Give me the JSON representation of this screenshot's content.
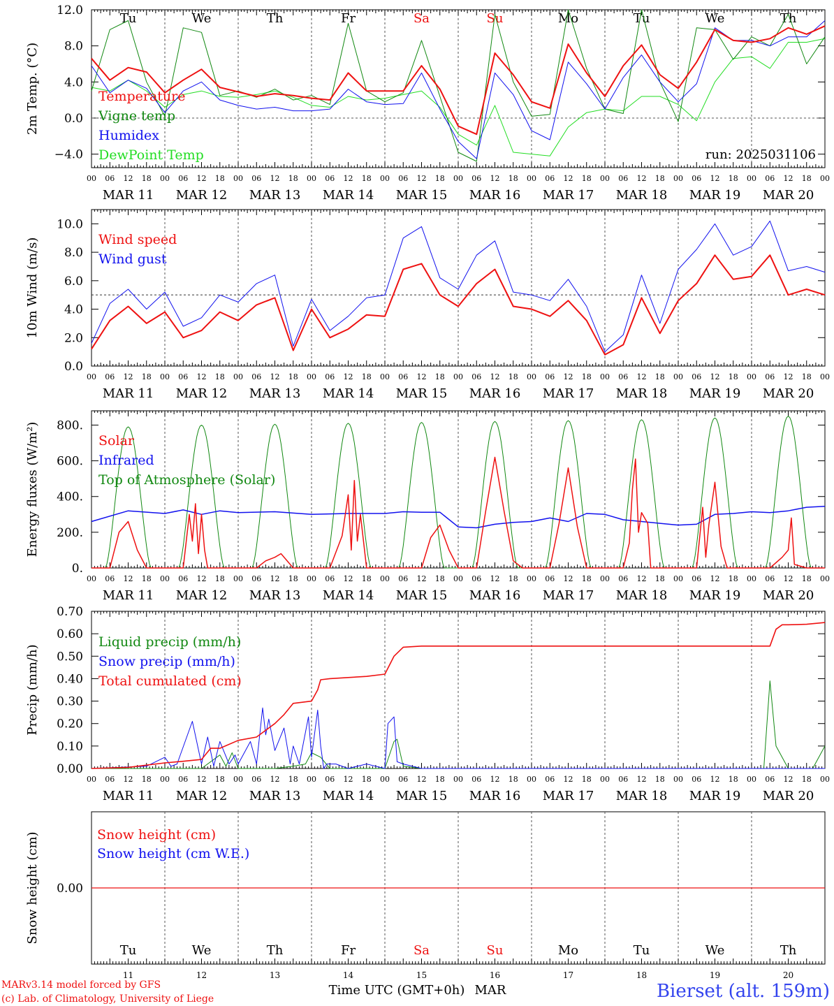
{
  "colors": {
    "red": "#ee1111",
    "green": "#118811",
    "blue": "#1111ee",
    "lightgreen": "#22dd22",
    "axis": "#000000",
    "site": "#3344ee"
  },
  "day_names": [
    "Tu",
    "We",
    "Th",
    "Fr",
    "Sa",
    "Su",
    "Mo",
    "Tu",
    "We",
    "Th"
  ],
  "weekend_days": [
    4,
    5
  ],
  "date_labels": [
    "MAR 11",
    "MAR 12",
    "MAR 13",
    "MAR 14",
    "MAR 15",
    "MAR 16",
    "MAR 17",
    "MAR 18",
    "MAR 19",
    "MAR 20"
  ],
  "hour_labels": [
    "00",
    "06",
    "12",
    "18"
  ],
  "hour_end_label": "00",
  "day_numbers": [
    "11",
    "12",
    "13",
    "14",
    "15",
    "16",
    "17",
    "18",
    "19",
    "20"
  ],
  "footer": {
    "model": "MARv3.14 model forced by GFS",
    "copyright": "(c) Lab. of Climatology, University of Liege",
    "time_axis": "Time UTC (GMT+0h)",
    "month": "MAR",
    "site": "Bierset (alt. 159m)"
  },
  "chart_data": [
    {
      "type": "line",
      "ylabel": "2m Temp. (°C)",
      "ylim": [
        -5.5,
        12.0
      ],
      "yticks": [
        -4.0,
        0.0,
        4.0,
        8.0,
        12.0
      ],
      "ytick_labels": [
        "−4.0",
        "0.0",
        "4.0",
        "8.0",
        "12.0"
      ],
      "ref_line": 0.0,
      "annotation": "run: 2025031106",
      "legend": [
        "Temperature",
        "Vigne temp",
        "Humidex",
        "DewPoint Temp"
      ],
      "x_hours": [
        0,
        6,
        12,
        18,
        24,
        30,
        36,
        42,
        48,
        54,
        60,
        66,
        72,
        78,
        84,
        90,
        96,
        102,
        108,
        114,
        120,
        126,
        132,
        138,
        144,
        150,
        156,
        162,
        168,
        174,
        180,
        186,
        192,
        198,
        204,
        210,
        216,
        222,
        228,
        234,
        240
      ],
      "series": [
        {
          "name": "Temperature",
          "color": "red",
          "width": 2,
          "values": [
            6.6,
            4.2,
            5.6,
            5.1,
            2.8,
            4.2,
            5.4,
            3.4,
            2.9,
            2.4,
            2.7,
            2.5,
            2.2,
            2.0,
            5.0,
            3.0,
            3.0,
            3.0,
            5.8,
            3.2,
            -0.9,
            -1.8,
            7.2,
            4.8,
            1.8,
            1.1,
            8.2,
            5.0,
            2.4,
            5.8,
            8.1,
            4.8,
            3.3,
            6.2,
            9.8,
            8.6,
            8.4,
            8.8,
            10.0,
            9.3,
            10.2
          ]
        },
        {
          "name": "Vigne temp",
          "color": "green",
          "width": 1,
          "values": [
            3.0,
            9.8,
            10.8,
            4.0,
            0.2,
            10.0,
            9.5,
            2.5,
            3.0,
            2.3,
            3.2,
            2.0,
            2.5,
            1.5,
            10.5,
            3.0,
            1.8,
            2.8,
            8.6,
            2.4,
            -3.8,
            -4.8,
            11.5,
            4.0,
            0.2,
            0.4,
            12.0,
            5.5,
            1.0,
            0.5,
            12.0,
            4.0,
            -0.4,
            10.0,
            9.8,
            6.5,
            9.0,
            8.0,
            11.5,
            6.0,
            9.0
          ]
        },
        {
          "name": "Humidex",
          "color": "blue",
          "width": 1,
          "values": [
            5.8,
            2.8,
            4.2,
            3.3,
            0.6,
            3.0,
            4.0,
            2.0,
            1.4,
            1.0,
            1.2,
            0.8,
            0.8,
            1.0,
            3.2,
            1.8,
            1.5,
            1.6,
            5.0,
            1.0,
            -2.6,
            -4.5,
            5.0,
            2.6,
            -1.4,
            -2.4,
            6.2,
            3.8,
            1.0,
            4.5,
            7.0,
            4.0,
            1.8,
            3.8,
            10.0,
            8.6,
            8.6,
            8.0,
            9.0,
            9.0,
            10.8
          ]
        },
        {
          "name": "DewPoint Temp",
          "color": "lightgreen",
          "width": 1,
          "values": [
            3.4,
            3.0,
            4.2,
            3.0,
            1.2,
            2.6,
            3.0,
            2.4,
            2.3,
            2.6,
            3.0,
            2.3,
            1.4,
            1.2,
            2.4,
            2.0,
            2.2,
            2.6,
            3.0,
            1.2,
            -1.8,
            -3.0,
            1.4,
            -3.8,
            -4.0,
            -4.2,
            -1.0,
            0.6,
            1.0,
            0.8,
            2.4,
            2.4,
            1.5,
            -0.3,
            4.0,
            6.6,
            6.8,
            5.5,
            8.4,
            8.4,
            8.8
          ]
        }
      ]
    },
    {
      "type": "line",
      "ylabel": "10m Wind (m/s)",
      "ylim": [
        0.0,
        11.0
      ],
      "yticks": [
        0.0,
        2.0,
        4.0,
        6.0,
        8.0,
        10.0
      ],
      "ytick_labels": [
        "0.0",
        "2.0",
        "4.0",
        "6.0",
        "8.0",
        "10.0"
      ],
      "ref_line": 5.0,
      "legend": [
        "Wind speed",
        "Wind gust"
      ],
      "x_hours": [
        0,
        6,
        12,
        18,
        24,
        30,
        36,
        42,
        48,
        54,
        60,
        66,
        72,
        78,
        84,
        90,
        96,
        102,
        108,
        114,
        120,
        126,
        132,
        138,
        144,
        150,
        156,
        162,
        168,
        174,
        180,
        186,
        192,
        198,
        204,
        210,
        216,
        222,
        228,
        234,
        240
      ],
      "series": [
        {
          "name": "Wind speed",
          "color": "red",
          "width": 2,
          "values": [
            1.2,
            3.2,
            4.2,
            3.0,
            3.8,
            2.0,
            2.5,
            3.8,
            3.2,
            4.3,
            4.8,
            1.1,
            4.0,
            2.0,
            2.6,
            3.6,
            3.5,
            6.8,
            7.2,
            5.0,
            4.2,
            5.8,
            6.8,
            4.2,
            4.0,
            3.5,
            4.6,
            3.2,
            0.8,
            1.5,
            4.8,
            2.3,
            4.6,
            5.8,
            7.8,
            6.1,
            6.3,
            7.8,
            5.0,
            5.4,
            5.0
          ]
        },
        {
          "name": "Wind gust",
          "color": "blue",
          "width": 1,
          "values": [
            1.6,
            4.4,
            5.4,
            4.0,
            5.2,
            2.8,
            3.4,
            5.0,
            4.5,
            5.8,
            6.4,
            1.4,
            4.7,
            2.5,
            3.5,
            4.8,
            5.0,
            9.0,
            9.8,
            6.2,
            5.4,
            7.8,
            8.8,
            5.2,
            5.0,
            4.6,
            6.1,
            4.2,
            1.0,
            2.2,
            6.4,
            3.0,
            6.8,
            8.2,
            10.0,
            7.8,
            8.4,
            10.2,
            6.7,
            7.0,
            6.6
          ]
        }
      ]
    },
    {
      "type": "line",
      "ylabel": "Energy fluxes (W/m²)",
      "ylim": [
        0,
        880
      ],
      "yticks": [
        0,
        200,
        400,
        600,
        800
      ],
      "ytick_labels": [
        "0.",
        "200.",
        "400.",
        "600.",
        "800."
      ],
      "legend": [
        "Solar",
        "Infrared",
        "Top of Atmosphere (Solar)"
      ],
      "toa_peaks": [
        790,
        800,
        805,
        810,
        815,
        820,
        825,
        830,
        840,
        850
      ],
      "infrared_x_hours": [
        0,
        12,
        24,
        30,
        36,
        42,
        48,
        60,
        72,
        84,
        96,
        102,
        108,
        114,
        120,
        126,
        132,
        138,
        144,
        150,
        156,
        162,
        168,
        174,
        180,
        186,
        192,
        198,
        204,
        210,
        216,
        222,
        228,
        234,
        240
      ],
      "infrared_values": [
        260,
        320,
        305,
        325,
        300,
        320,
        310,
        315,
        300,
        305,
        305,
        315,
        312,
        312,
        230,
        225,
        245,
        255,
        260,
        280,
        260,
        305,
        300,
        270,
        260,
        250,
        240,
        245,
        300,
        305,
        315,
        310,
        320,
        340,
        345
      ],
      "solar_x_hours": [
        0,
        6,
        9,
        12,
        15,
        18,
        24,
        30,
        32,
        33,
        34,
        35,
        36,
        37,
        38,
        42,
        48,
        54,
        57,
        60,
        62,
        66,
        72,
        78,
        82,
        84,
        85,
        86,
        87,
        88,
        90,
        96,
        102,
        108,
        111,
        114,
        117,
        120,
        126,
        129,
        132,
        135,
        138,
        141,
        144,
        150,
        153,
        156,
        159,
        162,
        168,
        174,
        176,
        177,
        178,
        179,
        180,
        182,
        183,
        186,
        192,
        198,
        200,
        201,
        202,
        204,
        206,
        208,
        210,
        216,
        222,
        226,
        228,
        229,
        230,
        234,
        240
      ],
      "solar_values": [
        0,
        0,
        200,
        260,
        100,
        0,
        0,
        0,
        300,
        150,
        360,
        80,
        300,
        100,
        0,
        0,
        0,
        0,
        40,
        60,
        80,
        0,
        0,
        0,
        180,
        410,
        100,
        490,
        150,
        300,
        0,
        0,
        0,
        0,
        170,
        240,
        100,
        0,
        0,
        320,
        620,
        320,
        40,
        0,
        0,
        0,
        250,
        560,
        230,
        0,
        0,
        0,
        140,
        440,
        610,
        200,
        310,
        250,
        0,
        0,
        0,
        0,
        340,
        60,
        240,
        480,
        120,
        0,
        0,
        0,
        0,
        60,
        100,
        280,
        20,
        0,
        0
      ]
    },
    {
      "type": "line",
      "ylabel": "Precip (mm/h)",
      "ylim": [
        0.0,
        0.7
      ],
      "yticks": [
        0.0,
        0.1,
        0.2,
        0.3,
        0.4,
        0.5,
        0.6,
        0.7
      ],
      "ytick_labels": [
        "0.00",
        "0.10",
        "0.20",
        "0.30",
        "0.40",
        "0.50",
        "0.60",
        "0.70"
      ],
      "legend": [
        "Liquid precip (mm/h)",
        "Snow precip (mm/h)",
        "Total cumulated (cm)"
      ],
      "cumulated_x_hours": [
        0,
        12,
        24,
        30,
        36,
        39,
        42,
        48,
        54,
        60,
        63,
        66,
        72,
        74,
        75,
        78,
        84,
        90,
        96,
        99,
        102,
        108,
        120,
        168,
        216,
        222,
        224,
        226,
        228,
        234,
        240
      ],
      "cumulated_values": [
        0.0,
        0.005,
        0.025,
        0.032,
        0.04,
        0.09,
        0.09,
        0.125,
        0.14,
        0.2,
        0.24,
        0.29,
        0.3,
        0.35,
        0.395,
        0.4,
        0.405,
        0.41,
        0.42,
        0.5,
        0.54,
        0.545,
        0.545,
        0.545,
        0.545,
        0.545,
        0.62,
        0.64,
        0.64,
        0.642,
        0.65
      ],
      "snow_x_hours": [
        0,
        18,
        24,
        26,
        28,
        33,
        36,
        38,
        40,
        42,
        45,
        47,
        48,
        52,
        54,
        56,
        57,
        58,
        60,
        63,
        65,
        66,
        68,
        71,
        72,
        74,
        75,
        76,
        77,
        80,
        84,
        90,
        96,
        97,
        99,
        100,
        102,
        108,
        240
      ],
      "snow_values": [
        0,
        0.01,
        0.05,
        0.01,
        0.02,
        0.21,
        0.02,
        0.14,
        0.01,
        0.12,
        0.02,
        0.06,
        0.02,
        0.12,
        0.02,
        0.27,
        0.15,
        0.22,
        0.08,
        0.18,
        0.02,
        0.1,
        0.02,
        0.23,
        0.05,
        0.26,
        0.1,
        0.0,
        0.02,
        0.02,
        0,
        0.02,
        0.0,
        0.2,
        0.23,
        0.03,
        0.02,
        0,
        0
      ],
      "liquid_x_hours": [
        0,
        36,
        42,
        44,
        46,
        48,
        60,
        66,
        70,
        72,
        75,
        78,
        90,
        96,
        99,
        100,
        102,
        108,
        216,
        220,
        222,
        224,
        228,
        236,
        240
      ],
      "liquid_values": [
        0,
        0,
        0.06,
        0.01,
        0.07,
        0.0,
        0,
        0.01,
        0.02,
        0.07,
        0.05,
        0.0,
        0,
        0.0,
        0.12,
        0.13,
        0.01,
        0,
        0,
        0,
        0.39,
        0.1,
        0.0,
        0,
        0.1
      ]
    },
    {
      "type": "line",
      "ylabel": "Snow height (cm)",
      "yticks": [
        0.0
      ],
      "ytick_labels": [
        "0.00"
      ],
      "legend": [
        "Snow height (cm)",
        "Snow height (cm W.E.)"
      ],
      "series": [
        {
          "name": "Snow height (cm)",
          "color": "red",
          "values": [
            0.0,
            0.0
          ]
        }
      ]
    }
  ]
}
